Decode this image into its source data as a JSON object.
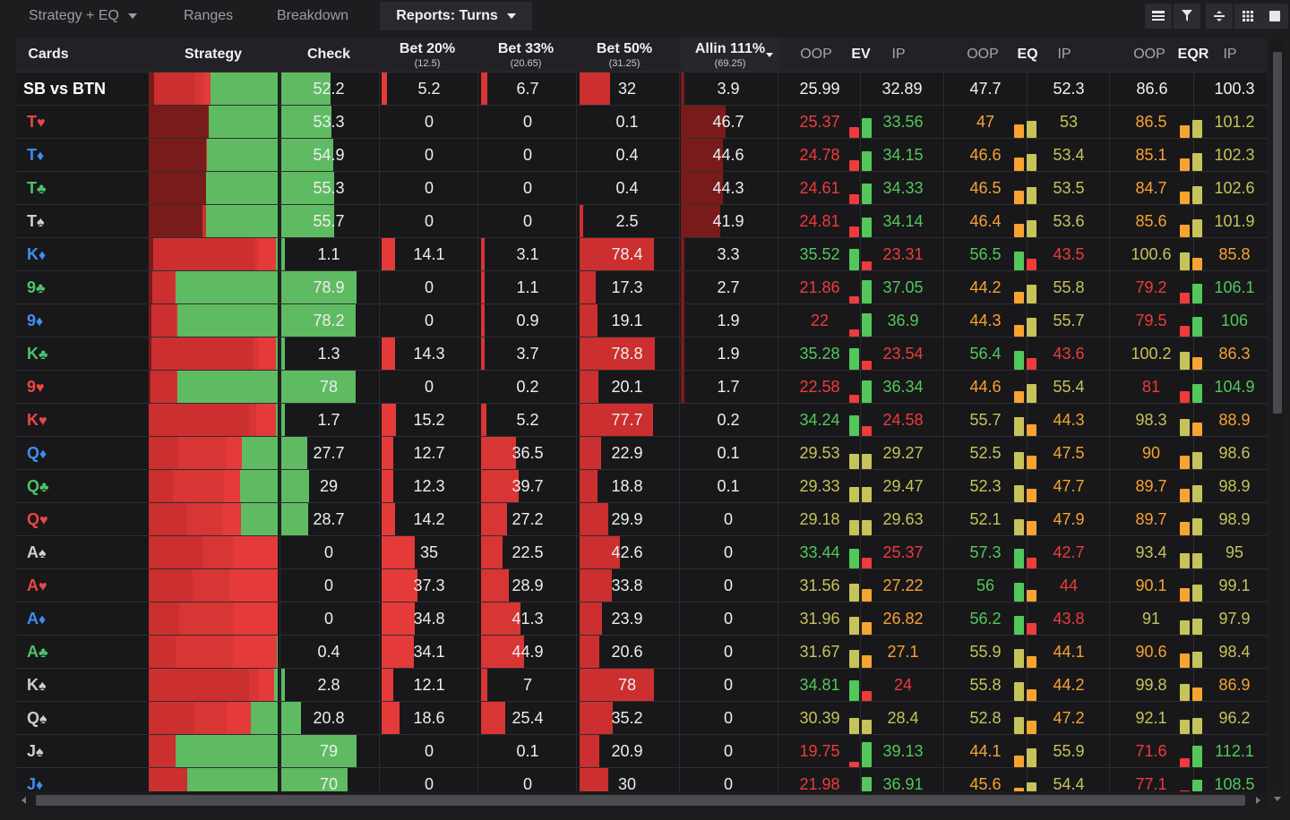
{
  "tabs": [
    {
      "label": "Strategy + EQ",
      "dropdown": true,
      "active": false
    },
    {
      "label": "Ranges",
      "dropdown": false,
      "active": false
    },
    {
      "label": "Breakdown",
      "dropdown": false,
      "active": false
    },
    {
      "label": "Reports: Turns",
      "dropdown": true,
      "active": true
    }
  ],
  "toolbar_icons": [
    "table-view-icon",
    "filter-icon",
    "layout-toggle-icon",
    "grid-view-icon",
    "square-view-icon"
  ],
  "columns": {
    "cards": "Cards",
    "strategy": "Strategy",
    "check": "Check",
    "bet20": "Bet 20%",
    "bet20_sub": "(12.5)",
    "bet33": "Bet 33%",
    "bet33_sub": "(20.65)",
    "bet50": "Bet 50%",
    "bet50_sub": "(31.25)",
    "allin": "Allin 111%",
    "allin_sub": "(69.25)",
    "ev": "EV",
    "eq": "EQ",
    "eqr": "EQR",
    "oop": "OOP",
    "ip": "IP"
  },
  "colors": {
    "hearts": "#ef4545",
    "diamonds": "#3d8ef0",
    "clubs": "#4cc46a",
    "spades": "#cfcfd2",
    "check": "#5fbb62",
    "bet20": "#e43a3a",
    "bet33": "#d83535",
    "bet50": "#cc2f2f",
    "allin": "#7a1b1b",
    "good": "#52c85a",
    "mid": "#c6c35a",
    "warn": "#f7a332",
    "bad": "#ee3b3b"
  },
  "summary": {
    "label": "SB vs BTN",
    "check": "52.2",
    "bet20": "5.2",
    "bet33": "6.7",
    "bet50": "32",
    "allin": "3.9",
    "ev_oop": "25.99",
    "ev_ip": "32.89",
    "eq_oop": "47.7",
    "eq_ip": "52.3",
    "eqr_oop": "86.6",
    "eqr_ip": "100.3"
  },
  "rows": [
    {
      "rank": "T",
      "suit": "♥",
      "color": "hearts",
      "check": "53.3",
      "bet20": "0",
      "bet33": "0",
      "bet50": "0.1",
      "allin": "46.7",
      "ev_oop": "25.37",
      "ev_ip": "33.56",
      "eq_oop": "47",
      "eq_ip": "53",
      "eqr_oop": "86.5",
      "eqr_ip": "101.2"
    },
    {
      "rank": "T",
      "suit": "♦",
      "color": "diamonds",
      "check": "54.9",
      "bet20": "0",
      "bet33": "0",
      "bet50": "0.4",
      "allin": "44.6",
      "ev_oop": "24.78",
      "ev_ip": "34.15",
      "eq_oop": "46.6",
      "eq_ip": "53.4",
      "eqr_oop": "85.1",
      "eqr_ip": "102.3"
    },
    {
      "rank": "T",
      "suit": "♣",
      "color": "clubs",
      "check": "55.3",
      "bet20": "0",
      "bet33": "0",
      "bet50": "0.4",
      "allin": "44.3",
      "ev_oop": "24.61",
      "ev_ip": "34.33",
      "eq_oop": "46.5",
      "eq_ip": "53.5",
      "eqr_oop": "84.7",
      "eqr_ip": "102.6"
    },
    {
      "rank": "T",
      "suit": "♠",
      "color": "spades",
      "check": "55.7",
      "bet20": "0",
      "bet33": "0",
      "bet50": "2.5",
      "allin": "41.9",
      "ev_oop": "24.81",
      "ev_ip": "34.14",
      "eq_oop": "46.4",
      "eq_ip": "53.6",
      "eqr_oop": "85.6",
      "eqr_ip": "101.9"
    },
    {
      "rank": "K",
      "suit": "♦",
      "color": "diamonds",
      "check": "1.1",
      "bet20": "14.1",
      "bet33": "3.1",
      "bet50": "78.4",
      "allin": "3.3",
      "ev_oop": "35.52",
      "ev_ip": "23.31",
      "eq_oop": "56.5",
      "eq_ip": "43.5",
      "eqr_oop": "100.6",
      "eqr_ip": "85.8"
    },
    {
      "rank": "9",
      "suit": "♣",
      "color": "clubs",
      "check": "78.9",
      "bet20": "0",
      "bet33": "1.1",
      "bet50": "17.3",
      "allin": "2.7",
      "ev_oop": "21.86",
      "ev_ip": "37.05",
      "eq_oop": "44.2",
      "eq_ip": "55.8",
      "eqr_oop": "79.2",
      "eqr_ip": "106.1"
    },
    {
      "rank": "9",
      "suit": "♦",
      "color": "diamonds",
      "check": "78.2",
      "bet20": "0",
      "bet33": "0.9",
      "bet50": "19.1",
      "allin": "1.9",
      "ev_oop": "22",
      "ev_ip": "36.9",
      "eq_oop": "44.3",
      "eq_ip": "55.7",
      "eqr_oop": "79.5",
      "eqr_ip": "106"
    },
    {
      "rank": "K",
      "suit": "♣",
      "color": "clubs",
      "check": "1.3",
      "bet20": "14.3",
      "bet33": "3.7",
      "bet50": "78.8",
      "allin": "1.9",
      "ev_oop": "35.28",
      "ev_ip": "23.54",
      "eq_oop": "56.4",
      "eq_ip": "43.6",
      "eqr_oop": "100.2",
      "eqr_ip": "86.3"
    },
    {
      "rank": "9",
      "suit": "♥",
      "color": "hearts",
      "check": "78",
      "bet20": "0",
      "bet33": "0.2",
      "bet50": "20.1",
      "allin": "1.7",
      "ev_oop": "22.58",
      "ev_ip": "36.34",
      "eq_oop": "44.6",
      "eq_ip": "55.4",
      "eqr_oop": "81",
      "eqr_ip": "104.9"
    },
    {
      "rank": "K",
      "suit": "♥",
      "color": "hearts",
      "check": "1.7",
      "bet20": "15.2",
      "bet33": "5.2",
      "bet50": "77.7",
      "allin": "0.2",
      "ev_oop": "34.24",
      "ev_ip": "24.58",
      "eq_oop": "55.7",
      "eq_ip": "44.3",
      "eqr_oop": "98.3",
      "eqr_ip": "88.9"
    },
    {
      "rank": "Q",
      "suit": "♦",
      "color": "diamonds",
      "check": "27.7",
      "bet20": "12.7",
      "bet33": "36.5",
      "bet50": "22.9",
      "allin": "0.1",
      "ev_oop": "29.53",
      "ev_ip": "29.27",
      "eq_oop": "52.5",
      "eq_ip": "47.5",
      "eqr_oop": "90",
      "eqr_ip": "98.6"
    },
    {
      "rank": "Q",
      "suit": "♣",
      "color": "clubs",
      "check": "29",
      "bet20": "12.3",
      "bet33": "39.7",
      "bet50": "18.8",
      "allin": "0.1",
      "ev_oop": "29.33",
      "ev_ip": "29.47",
      "eq_oop": "52.3",
      "eq_ip": "47.7",
      "eqr_oop": "89.7",
      "eqr_ip": "98.9"
    },
    {
      "rank": "Q",
      "suit": "♥",
      "color": "hearts",
      "check": "28.7",
      "bet20": "14.2",
      "bet33": "27.2",
      "bet50": "29.9",
      "allin": "0",
      "ev_oop": "29.18",
      "ev_ip": "29.63",
      "eq_oop": "52.1",
      "eq_ip": "47.9",
      "eqr_oop": "89.7",
      "eqr_ip": "98.9"
    },
    {
      "rank": "A",
      "suit": "♠",
      "color": "spades",
      "check": "0",
      "bet20": "35",
      "bet33": "22.5",
      "bet50": "42.6",
      "allin": "0",
      "ev_oop": "33.44",
      "ev_ip": "25.37",
      "eq_oop": "57.3",
      "eq_ip": "42.7",
      "eqr_oop": "93.4",
      "eqr_ip": "95"
    },
    {
      "rank": "A",
      "suit": "♥",
      "color": "hearts",
      "check": "0",
      "bet20": "37.3",
      "bet33": "28.9",
      "bet50": "33.8",
      "allin": "0",
      "ev_oop": "31.56",
      "ev_ip": "27.22",
      "eq_oop": "56",
      "eq_ip": "44",
      "eqr_oop": "90.1",
      "eqr_ip": "99.1"
    },
    {
      "rank": "A",
      "suit": "♦",
      "color": "diamonds",
      "check": "0",
      "bet20": "34.8",
      "bet33": "41.3",
      "bet50": "23.9",
      "allin": "0",
      "ev_oop": "31.96",
      "ev_ip": "26.82",
      "eq_oop": "56.2",
      "eq_ip": "43.8",
      "eqr_oop": "91",
      "eqr_ip": "97.9"
    },
    {
      "rank": "A",
      "suit": "♣",
      "color": "clubs",
      "check": "0.4",
      "bet20": "34.1",
      "bet33": "44.9",
      "bet50": "20.6",
      "allin": "0",
      "ev_oop": "31.67",
      "ev_ip": "27.1",
      "eq_oop": "55.9",
      "eq_ip": "44.1",
      "eqr_oop": "90.6",
      "eqr_ip": "98.4"
    },
    {
      "rank": "K",
      "suit": "♠",
      "color": "spades",
      "check": "2.8",
      "bet20": "12.1",
      "bet33": "7",
      "bet50": "78",
      "allin": "0",
      "ev_oop": "34.81",
      "ev_ip": "24",
      "eq_oop": "55.8",
      "eq_ip": "44.2",
      "eqr_oop": "99.8",
      "eqr_ip": "86.9"
    },
    {
      "rank": "Q",
      "suit": "♠",
      "color": "spades",
      "check": "20.8",
      "bet20": "18.6",
      "bet33": "25.4",
      "bet50": "35.2",
      "allin": "0",
      "ev_oop": "30.39",
      "ev_ip": "28.4",
      "eq_oop": "52.8",
      "eq_ip": "47.2",
      "eqr_oop": "92.1",
      "eqr_ip": "96.2"
    },
    {
      "rank": "J",
      "suit": "♠",
      "color": "spades",
      "check": "79",
      "bet20": "0",
      "bet33": "0.1",
      "bet50": "20.9",
      "allin": "0",
      "ev_oop": "19.75",
      "ev_ip": "39.13",
      "eq_oop": "44.1",
      "eq_ip": "55.9",
      "eqr_oop": "71.6",
      "eqr_ip": "112.1"
    },
    {
      "rank": "J",
      "suit": "♦",
      "color": "diamonds",
      "check": "70",
      "bet20": "0",
      "bet33": "0",
      "bet50": "30",
      "allin": "0",
      "ev_oop": "21.98",
      "ev_ip": "36.91",
      "eq_oop": "45.6",
      "eq_ip": "54.4",
      "eqr_oop": "77.1",
      "eqr_ip": "108.5"
    }
  ]
}
